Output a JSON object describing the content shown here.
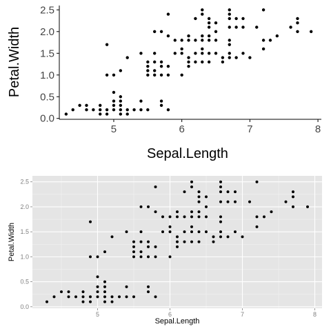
{
  "chart_data": [
    {
      "type": "scatter",
      "theme": "classic (white background, no grid)",
      "xlabel": "Sepal.Length",
      "ylabel": "Petal.Width",
      "xlim": [
        4.2,
        8.05
      ],
      "ylim": [
        -0.02,
        2.6
      ],
      "xticks": [
        "5",
        "6",
        "7",
        "8"
      ],
      "yticks": [
        "0.0",
        "0.5",
        "1.0",
        "1.5",
        "2.0",
        "2.5"
      ],
      "grid": false,
      "point_color": "#000000",
      "points": [
        [
          4.3,
          0.1
        ],
        [
          4.4,
          0.2
        ],
        [
          4.5,
          0.3
        ],
        [
          4.6,
          0.2
        ],
        [
          4.6,
          0.3
        ],
        [
          4.7,
          0.2
        ],
        [
          4.8,
          0.1
        ],
        [
          4.8,
          0.2
        ],
        [
          4.8,
          0.3
        ],
        [
          4.9,
          0.1
        ],
        [
          4.9,
          0.2
        ],
        [
          4.9,
          1.0
        ],
        [
          4.9,
          1.7
        ],
        [
          5.0,
          0.2
        ],
        [
          5.0,
          0.3
        ],
        [
          5.0,
          0.4
        ],
        [
          5.0,
          0.6
        ],
        [
          5.0,
          1.0
        ],
        [
          5.1,
          0.1
        ],
        [
          5.1,
          0.2
        ],
        [
          5.1,
          0.3
        ],
        [
          5.1,
          0.4
        ],
        [
          5.1,
          0.5
        ],
        [
          5.1,
          1.1
        ],
        [
          5.2,
          0.1
        ],
        [
          5.2,
          0.2
        ],
        [
          5.2,
          1.4
        ],
        [
          5.3,
          0.2
        ],
        [
          5.4,
          0.2
        ],
        [
          5.4,
          0.4
        ],
        [
          5.4,
          1.5
        ],
        [
          5.5,
          0.2
        ],
        [
          5.5,
          1.0
        ],
        [
          5.5,
          1.1
        ],
        [
          5.5,
          1.2
        ],
        [
          5.5,
          1.3
        ],
        [
          5.6,
          1.0
        ],
        [
          5.6,
          1.1
        ],
        [
          5.6,
          1.3
        ],
        [
          5.6,
          1.5
        ],
        [
          5.6,
          2.0
        ],
        [
          5.7,
          0.3
        ],
        [
          5.7,
          0.4
        ],
        [
          5.7,
          1.0
        ],
        [
          5.7,
          1.2
        ],
        [
          5.7,
          1.3
        ],
        [
          5.7,
          2.0
        ],
        [
          5.8,
          0.2
        ],
        [
          5.8,
          1.0
        ],
        [
          5.8,
          1.2
        ],
        [
          5.8,
          1.9
        ],
        [
          5.8,
          2.4
        ],
        [
          5.9,
          1.5
        ],
        [
          5.9,
          1.8
        ],
        [
          6.0,
          1.0
        ],
        [
          6.0,
          1.5
        ],
        [
          6.0,
          1.6
        ],
        [
          6.0,
          1.8
        ],
        [
          6.1,
          1.2
        ],
        [
          6.1,
          1.3
        ],
        [
          6.1,
          1.4
        ],
        [
          6.1,
          1.8
        ],
        [
          6.1,
          1.9
        ],
        [
          6.2,
          1.3
        ],
        [
          6.2,
          1.5
        ],
        [
          6.2,
          1.8
        ],
        [
          6.2,
          2.3
        ],
        [
          6.3,
          1.3
        ],
        [
          6.3,
          1.5
        ],
        [
          6.3,
          1.6
        ],
        [
          6.3,
          1.8
        ],
        [
          6.3,
          1.9
        ],
        [
          6.3,
          2.4
        ],
        [
          6.3,
          2.5
        ],
        [
          6.4,
          1.3
        ],
        [
          6.4,
          1.5
        ],
        [
          6.4,
          1.8
        ],
        [
          6.4,
          1.9
        ],
        [
          6.4,
          2.1
        ],
        [
          6.4,
          2.2
        ],
        [
          6.4,
          2.3
        ],
        [
          6.5,
          1.5
        ],
        [
          6.5,
          1.8
        ],
        [
          6.5,
          2.0
        ],
        [
          6.5,
          2.2
        ],
        [
          6.6,
          1.3
        ],
        [
          6.6,
          1.4
        ],
        [
          6.7,
          1.4
        ],
        [
          6.7,
          1.5
        ],
        [
          6.7,
          1.7
        ],
        [
          6.7,
          1.8
        ],
        [
          6.7,
          2.1
        ],
        [
          6.7,
          2.3
        ],
        [
          6.7,
          2.4
        ],
        [
          6.7,
          2.5
        ],
        [
          6.8,
          1.4
        ],
        [
          6.8,
          2.1
        ],
        [
          6.8,
          2.3
        ],
        [
          6.9,
          1.5
        ],
        [
          6.9,
          2.1
        ],
        [
          6.9,
          2.3
        ],
        [
          7.0,
          1.4
        ],
        [
          7.1,
          2.1
        ],
        [
          7.2,
          1.6
        ],
        [
          7.2,
          1.8
        ],
        [
          7.2,
          2.5
        ],
        [
          7.3,
          1.8
        ],
        [
          7.4,
          1.9
        ],
        [
          7.6,
          2.1
        ],
        [
          7.7,
          2.0
        ],
        [
          7.7,
          2.2
        ],
        [
          7.7,
          2.3
        ],
        [
          7.9,
          2.0
        ]
      ]
    },
    {
      "type": "scatter",
      "theme": "ggplot2 grey (grey panel, white grid)",
      "xlabel": "Sepal.Length",
      "ylabel": "Petal.Width",
      "xlim": [
        4.1,
        8.1
      ],
      "ylim": [
        -0.03,
        2.62
      ],
      "xticks": [
        "5",
        "6",
        "7",
        "8"
      ],
      "yticks": [
        "0.0",
        "0.5",
        "1.0",
        "1.5",
        "2.0",
        "2.5"
      ],
      "grid": true,
      "panel_color": "#e5e5e5",
      "grid_color": "#ffffff",
      "point_color": "#000000",
      "same_points_as_chart": 0
    }
  ]
}
